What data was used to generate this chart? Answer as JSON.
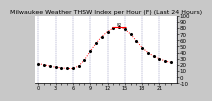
{
  "title": "Milwaukee Weather THSW Index per Hour (F) (Last 24 Hours)",
  "background_color": "#c8c8c8",
  "plot_bg_color": "#ffffff",
  "line_color": "#ff0000",
  "dot_color": "#000000",
  "grid_color": "#7777aa",
  "ylim": [
    -10,
    100
  ],
  "yticks": [
    -10,
    0,
    10,
    20,
    30,
    40,
    50,
    60,
    70,
    80,
    90,
    100
  ],
  "ytick_labels": [
    "-10",
    "0",
    "10",
    "20",
    "30",
    "40",
    "50",
    "60",
    "70",
    "80",
    "90",
    "100"
  ],
  "hours": [
    0,
    1,
    2,
    3,
    4,
    5,
    6,
    7,
    8,
    9,
    10,
    11,
    12,
    13,
    14,
    15,
    16,
    17,
    18,
    19,
    20,
    21,
    22,
    23
  ],
  "values": [
    22,
    20,
    18,
    16,
    15,
    14,
    14,
    18,
    28,
    42,
    55,
    66,
    74,
    80,
    82,
    78,
    70,
    59,
    48,
    40,
    34,
    30,
    26,
    24
  ],
  "max_value": 82,
  "max_hour": 14,
  "vline_hours": [
    0,
    3,
    6,
    9,
    12,
    15,
    18,
    21,
    24
  ],
  "ylabel_fontsize": 4,
  "xlabel_fontsize": 3.5,
  "title_fontsize": 4.5,
  "linewidth": 0.7,
  "dot_size": 1.5
}
